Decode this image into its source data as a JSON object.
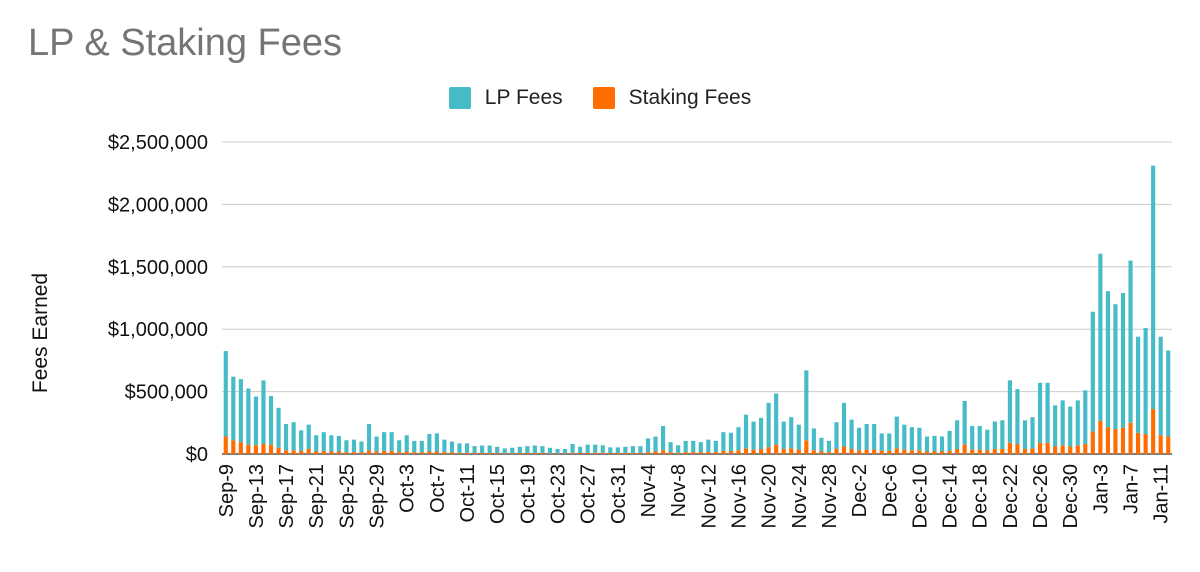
{
  "chart_data": {
    "type": "bar",
    "stacked": true,
    "title": "LP & Staking Fees",
    "xlabel": "",
    "ylabel": "Fees Earned",
    "ylim": [
      0,
      2500000
    ],
    "yticks": [
      "$0",
      "$500,000",
      "$1,000,000",
      "$1,500,000",
      "$2,000,000",
      "$2,500,000"
    ],
    "xtick_labels": [
      "Sep-9",
      "Sep-13",
      "Sep-17",
      "Sep-21",
      "Sep-25",
      "Sep-29",
      "Oct-3",
      "Oct-7",
      "Oct-11",
      "Oct-15",
      "Oct-19",
      "Oct-23",
      "Oct-27",
      "Oct-31",
      "Nov-4",
      "Nov-8",
      "Nov-12",
      "Nov-16",
      "Nov-20",
      "Nov-24",
      "Nov-28",
      "Dec-2",
      "Dec-6",
      "Dec-10",
      "Dec-14",
      "Dec-18",
      "Dec-22",
      "Dec-26",
      "Dec-30",
      "Jan-3",
      "Jan-7",
      "Jan-11"
    ],
    "grid": true,
    "legend_position": "top-center",
    "series": [
      {
        "name": "LP Fees",
        "color": "#45BCC8",
        "values": [
          685000,
          510000,
          505000,
          450000,
          390000,
          510000,
          390000,
          320000,
          210000,
          225000,
          165000,
          195000,
          130000,
          150000,
          130000,
          125000,
          95000,
          100000,
          85000,
          210000,
          120000,
          150000,
          150000,
          95000,
          130000,
          90000,
          90000,
          140000,
          145000,
          100000,
          85000,
          75000,
          75000,
          55000,
          60000,
          60000,
          50000,
          40000,
          45000,
          50000,
          55000,
          60000,
          55000,
          45000,
          35000,
          35000,
          70000,
          50000,
          65000,
          65000,
          60000,
          45000,
          45000,
          50000,
          55000,
          55000,
          110000,
          120000,
          195000,
          80000,
          60000,
          90000,
          90000,
          80000,
          100000,
          90000,
          150000,
          145000,
          185000,
          270000,
          225000,
          250000,
          355000,
          410000,
          220000,
          250000,
          200000,
          560000,
          175000,
          110000,
          90000,
          215000,
          350000,
          235000,
          180000,
          205000,
          205000,
          140000,
          140000,
          255000,
          200000,
          185000,
          180000,
          120000,
          125000,
          120000,
          160000,
          230000,
          350000,
          190000,
          190000,
          165000,
          220000,
          230000,
          500000,
          440000,
          230000,
          250000,
          480000,
          480000,
          330000,
          360000,
          320000,
          360000,
          430000,
          960000,
          1340000,
          1090000,
          1000000,
          1080000,
          1300000,
          770000,
          850000,
          1950000,
          790000,
          690000
        ],
        "note_omitted": ""
      },
      {
        "name": "Staking Fees",
        "color": "#FF6D01",
        "values": [
          140000,
          110000,
          95000,
          75000,
          70000,
          80000,
          75000,
          50000,
          30000,
          30000,
          25000,
          40000,
          20000,
          25000,
          20000,
          20000,
          15000,
          15000,
          15000,
          30000,
          20000,
          25000,
          25000,
          15000,
          20000,
          15000,
          15000,
          20000,
          20000,
          15000,
          15000,
          10000,
          10000,
          8000,
          8000,
          8000,
          8000,
          5000,
          5000,
          8000,
          8000,
          8000,
          8000,
          5000,
          5000,
          5000,
          10000,
          8000,
          10000,
          10000,
          10000,
          8000,
          8000,
          8000,
          8000,
          8000,
          15000,
          20000,
          30000,
          15000,
          10000,
          15000,
          15000,
          15000,
          15000,
          15000,
          25000,
          25000,
          30000,
          45000,
          35000,
          40000,
          55000,
          75000,
          40000,
          45000,
          35000,
          110000,
          30000,
          20000,
          15000,
          40000,
          60000,
          40000,
          30000,
          35000,
          35000,
          25000,
          25000,
          45000,
          35000,
          30000,
          30000,
          20000,
          20000,
          20000,
          25000,
          40000,
          75000,
          35000,
          35000,
          30000,
          40000,
          40000,
          90000,
          80000,
          40000,
          45000,
          90000,
          90000,
          60000,
          70000,
          60000,
          70000,
          80000,
          180000,
          265000,
          215000,
          200000,
          210000,
          250000,
          170000,
          160000,
          360000,
          150000,
          140000
        ]
      }
    ]
  }
}
